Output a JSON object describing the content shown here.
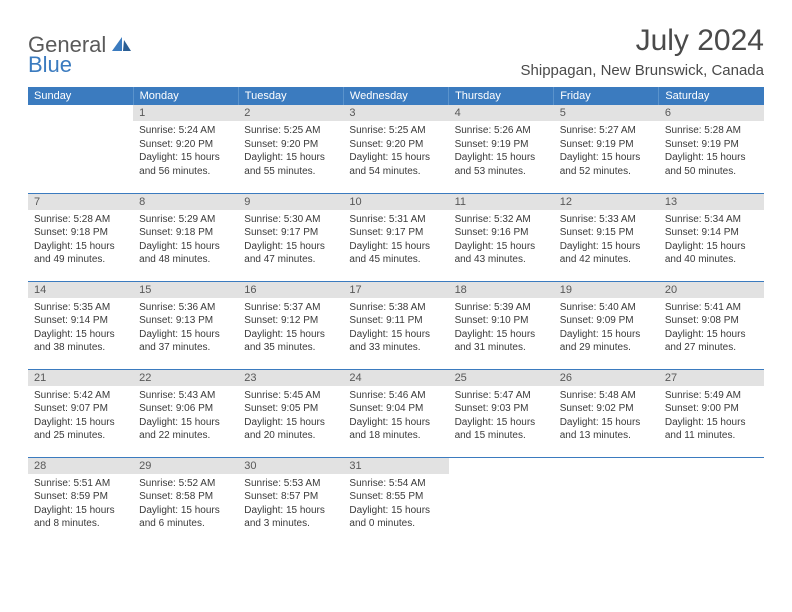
{
  "logo": {
    "text_gray": "General",
    "text_blue": "Blue"
  },
  "title": "July 2024",
  "location": "Shippagan, New Brunswick, Canada",
  "colors": {
    "header_bg": "#3b7bbf",
    "header_text": "#ffffff",
    "daynum_bg": "#e2e2e2",
    "daynum_text": "#585858",
    "border": "#3b7bbf",
    "body_text": "#3a3a3a",
    "logo_gray": "#5a5a5a",
    "logo_blue": "#3b7bbf"
  },
  "dow": [
    "Sunday",
    "Monday",
    "Tuesday",
    "Wednesday",
    "Thursday",
    "Friday",
    "Saturday"
  ],
  "weeks": [
    [
      {
        "n": "",
        "sr": "",
        "ss": "",
        "dl": ""
      },
      {
        "n": "1",
        "sr": "5:24 AM",
        "ss": "9:20 PM",
        "dl": "15 hours and 56 minutes."
      },
      {
        "n": "2",
        "sr": "5:25 AM",
        "ss": "9:20 PM",
        "dl": "15 hours and 55 minutes."
      },
      {
        "n": "3",
        "sr": "5:25 AM",
        "ss": "9:20 PM",
        "dl": "15 hours and 54 minutes."
      },
      {
        "n": "4",
        "sr": "5:26 AM",
        "ss": "9:19 PM",
        "dl": "15 hours and 53 minutes."
      },
      {
        "n": "5",
        "sr": "5:27 AM",
        "ss": "9:19 PM",
        "dl": "15 hours and 52 minutes."
      },
      {
        "n": "6",
        "sr": "5:28 AM",
        "ss": "9:19 PM",
        "dl": "15 hours and 50 minutes."
      }
    ],
    [
      {
        "n": "7",
        "sr": "5:28 AM",
        "ss": "9:18 PM",
        "dl": "15 hours and 49 minutes."
      },
      {
        "n": "8",
        "sr": "5:29 AM",
        "ss": "9:18 PM",
        "dl": "15 hours and 48 minutes."
      },
      {
        "n": "9",
        "sr": "5:30 AM",
        "ss": "9:17 PM",
        "dl": "15 hours and 47 minutes."
      },
      {
        "n": "10",
        "sr": "5:31 AM",
        "ss": "9:17 PM",
        "dl": "15 hours and 45 minutes."
      },
      {
        "n": "11",
        "sr": "5:32 AM",
        "ss": "9:16 PM",
        "dl": "15 hours and 43 minutes."
      },
      {
        "n": "12",
        "sr": "5:33 AM",
        "ss": "9:15 PM",
        "dl": "15 hours and 42 minutes."
      },
      {
        "n": "13",
        "sr": "5:34 AM",
        "ss": "9:14 PM",
        "dl": "15 hours and 40 minutes."
      }
    ],
    [
      {
        "n": "14",
        "sr": "5:35 AM",
        "ss": "9:14 PM",
        "dl": "15 hours and 38 minutes."
      },
      {
        "n": "15",
        "sr": "5:36 AM",
        "ss": "9:13 PM",
        "dl": "15 hours and 37 minutes."
      },
      {
        "n": "16",
        "sr": "5:37 AM",
        "ss": "9:12 PM",
        "dl": "15 hours and 35 minutes."
      },
      {
        "n": "17",
        "sr": "5:38 AM",
        "ss": "9:11 PM",
        "dl": "15 hours and 33 minutes."
      },
      {
        "n": "18",
        "sr": "5:39 AM",
        "ss": "9:10 PM",
        "dl": "15 hours and 31 minutes."
      },
      {
        "n": "19",
        "sr": "5:40 AM",
        "ss": "9:09 PM",
        "dl": "15 hours and 29 minutes."
      },
      {
        "n": "20",
        "sr": "5:41 AM",
        "ss": "9:08 PM",
        "dl": "15 hours and 27 minutes."
      }
    ],
    [
      {
        "n": "21",
        "sr": "5:42 AM",
        "ss": "9:07 PM",
        "dl": "15 hours and 25 minutes."
      },
      {
        "n": "22",
        "sr": "5:43 AM",
        "ss": "9:06 PM",
        "dl": "15 hours and 22 minutes."
      },
      {
        "n": "23",
        "sr": "5:45 AM",
        "ss": "9:05 PM",
        "dl": "15 hours and 20 minutes."
      },
      {
        "n": "24",
        "sr": "5:46 AM",
        "ss": "9:04 PM",
        "dl": "15 hours and 18 minutes."
      },
      {
        "n": "25",
        "sr": "5:47 AM",
        "ss": "9:03 PM",
        "dl": "15 hours and 15 minutes."
      },
      {
        "n": "26",
        "sr": "5:48 AM",
        "ss": "9:02 PM",
        "dl": "15 hours and 13 minutes."
      },
      {
        "n": "27",
        "sr": "5:49 AM",
        "ss": "9:00 PM",
        "dl": "15 hours and 11 minutes."
      }
    ],
    [
      {
        "n": "28",
        "sr": "5:51 AM",
        "ss": "8:59 PM",
        "dl": "15 hours and 8 minutes."
      },
      {
        "n": "29",
        "sr": "5:52 AM",
        "ss": "8:58 PM",
        "dl": "15 hours and 6 minutes."
      },
      {
        "n": "30",
        "sr": "5:53 AM",
        "ss": "8:57 PM",
        "dl": "15 hours and 3 minutes."
      },
      {
        "n": "31",
        "sr": "5:54 AM",
        "ss": "8:55 PM",
        "dl": "15 hours and 0 minutes."
      },
      {
        "n": "",
        "sr": "",
        "ss": "",
        "dl": ""
      },
      {
        "n": "",
        "sr": "",
        "ss": "",
        "dl": ""
      },
      {
        "n": "",
        "sr": "",
        "ss": "",
        "dl": ""
      }
    ]
  ],
  "labels": {
    "sunrise": "Sunrise:",
    "sunset": "Sunset:",
    "daylight": "Daylight:"
  }
}
